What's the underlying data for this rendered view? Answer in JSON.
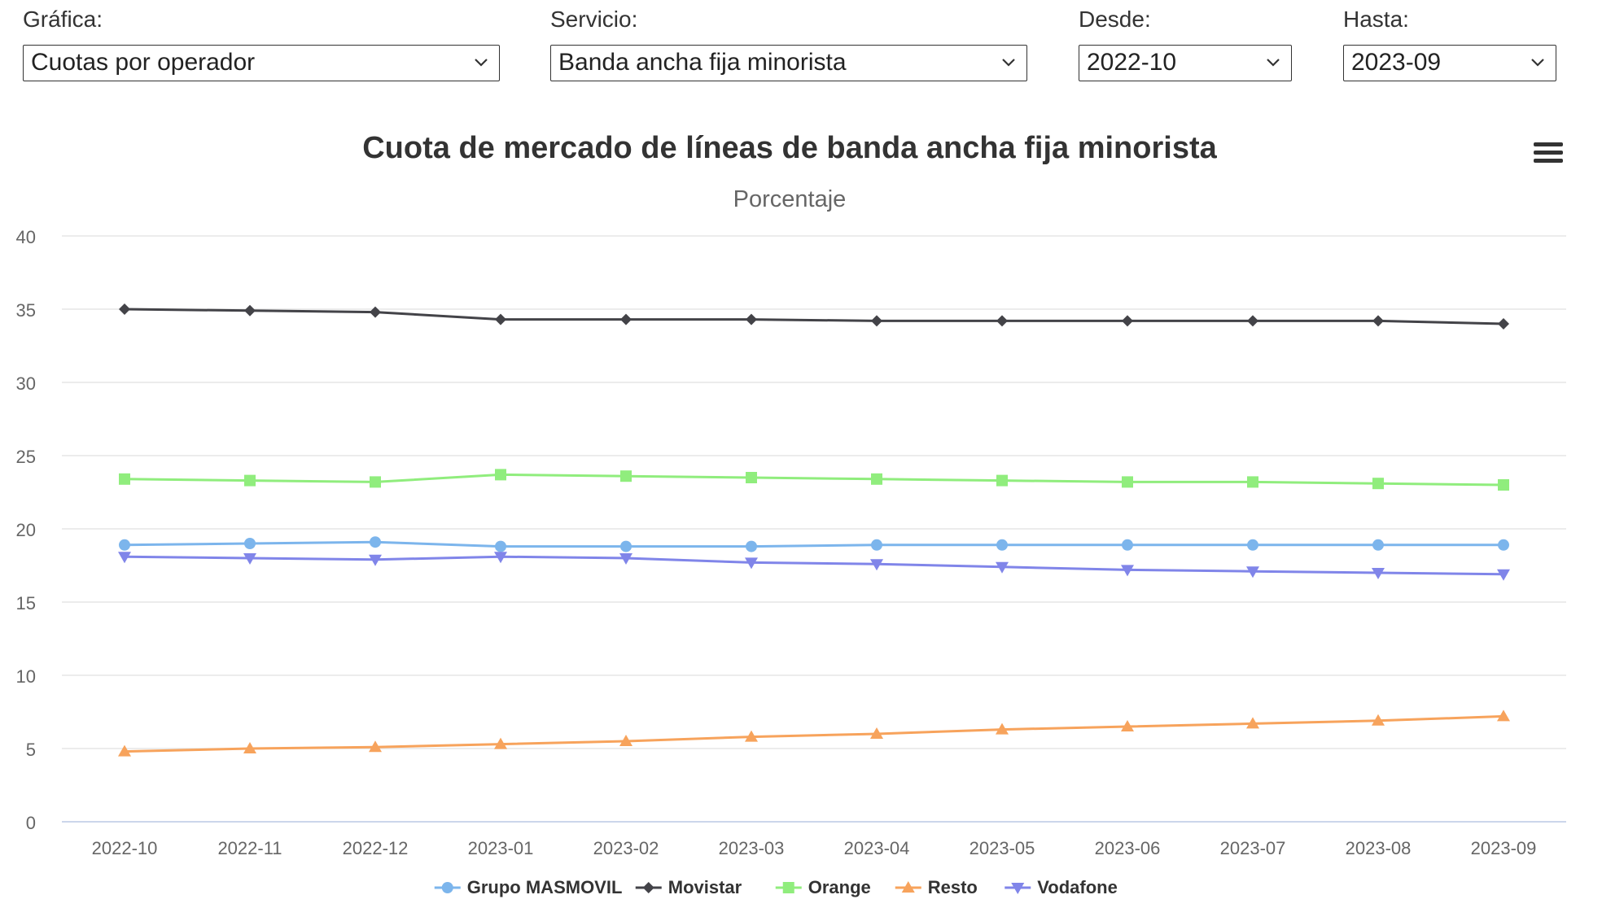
{
  "filters": [
    {
      "label": "Gráfica:",
      "value": "Cuotas por operador"
    },
    {
      "label": "Servicio:",
      "value": "Banda ancha fija minorista"
    },
    {
      "label": "Desde:",
      "value": "2022-10"
    },
    {
      "label": "Hasta:",
      "value": "2023-09"
    }
  ],
  "icons": {
    "menu": "hamburger-menu-icon",
    "dropdown": "chevron-down-icon"
  },
  "chart_data": {
    "type": "line",
    "title": "Cuota de mercado de líneas de banda ancha fija minorista",
    "subtitle": "Porcentaje",
    "xlabel": "",
    "ylabel": "",
    "ylim": [
      0,
      40
    ],
    "yticks": [
      0,
      5,
      10,
      15,
      20,
      25,
      30,
      35,
      40
    ],
    "grid": true,
    "legend": "bottom-center",
    "categories": [
      "2022-10",
      "2022-11",
      "2022-12",
      "2023-01",
      "2023-02",
      "2023-03",
      "2023-04",
      "2023-05",
      "2023-06",
      "2023-07",
      "2023-08",
      "2023-09"
    ],
    "series": [
      {
        "name": "Grupo MASMOVIL",
        "color": "#7cb5ec",
        "marker": "circle",
        "values": [
          18.9,
          19.0,
          19.1,
          18.8,
          18.8,
          18.8,
          18.9,
          18.9,
          18.9,
          18.9,
          18.9,
          18.9
        ]
      },
      {
        "name": "Movistar",
        "color": "#434348",
        "marker": "diamond",
        "values": [
          35.0,
          34.9,
          34.8,
          34.3,
          34.3,
          34.3,
          34.2,
          34.2,
          34.2,
          34.2,
          34.2,
          34.0
        ]
      },
      {
        "name": "Orange",
        "color": "#90ed7d",
        "marker": "square",
        "values": [
          23.4,
          23.3,
          23.2,
          23.7,
          23.6,
          23.5,
          23.4,
          23.3,
          23.2,
          23.2,
          23.1,
          23.0
        ]
      },
      {
        "name": "Resto",
        "color": "#f7a35c",
        "marker": "triangle",
        "values": [
          4.8,
          5.0,
          5.1,
          5.3,
          5.5,
          5.8,
          6.0,
          6.3,
          6.5,
          6.7,
          6.9,
          7.2
        ]
      },
      {
        "name": "Vodafone",
        "color": "#8085e9",
        "marker": "triangle-down",
        "values": [
          18.1,
          18.0,
          17.9,
          18.1,
          18.0,
          17.7,
          17.6,
          17.4,
          17.2,
          17.1,
          17.0,
          16.9
        ]
      }
    ]
  }
}
